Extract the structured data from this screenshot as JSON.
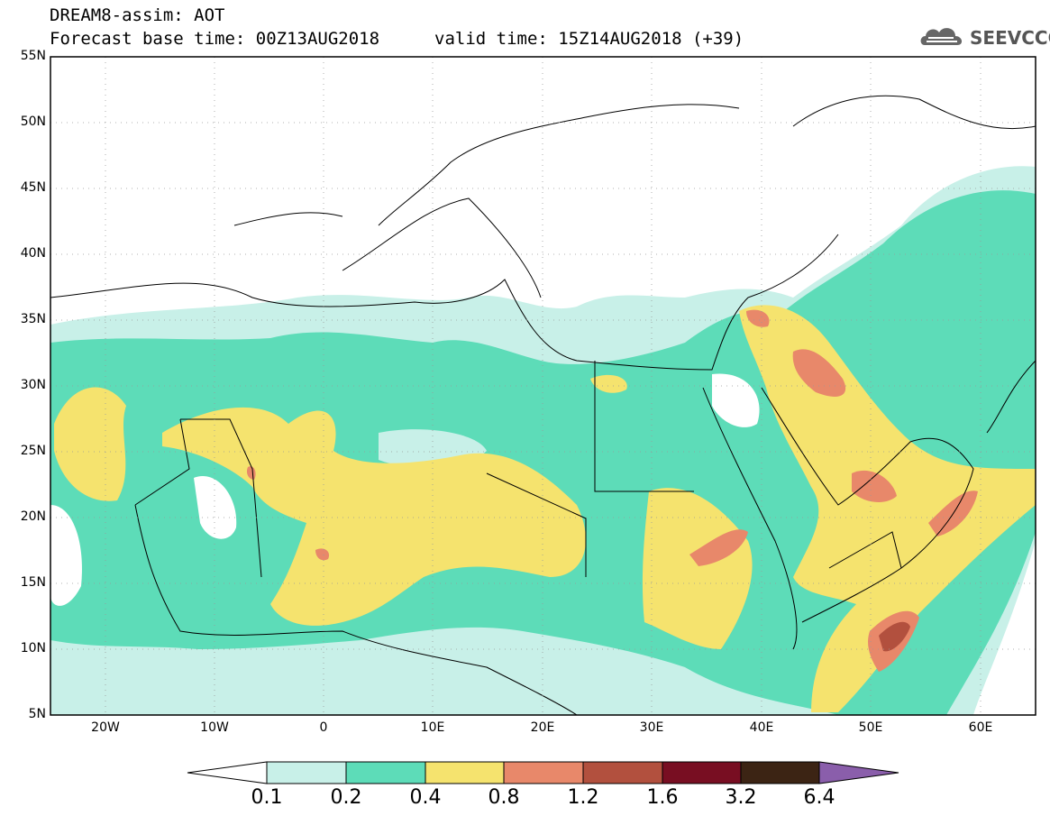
{
  "header": {
    "line1": "DREAM8-assim: AOT",
    "line2": "Forecast base time: 00Z13AUG2018",
    "valid": "valid time: 15Z14AUG2018 (+39)"
  },
  "logo": {
    "text": "SEEVCCC",
    "icon": "cloud-icon"
  },
  "axes": {
    "lat_labels": [
      "55N",
      "50N",
      "45N",
      "40N",
      "35N",
      "30N",
      "25N",
      "20N",
      "15N",
      "10N",
      "5N"
    ],
    "lon_labels": [
      "20W",
      "10W",
      "0",
      "10E",
      "20E",
      "30E",
      "40E",
      "50E",
      "60E"
    ]
  },
  "colorbar": {
    "labels": [
      "0.1",
      "0.2",
      "0.4",
      "0.8",
      "1.2",
      "1.6",
      "3.2",
      "6.4"
    ],
    "colors": [
      "#ffffff",
      "#c8f0e8",
      "#5ddcb8",
      "#f5e36e",
      "#e8886a",
      "#b2503e",
      "#780e22",
      "#3c2414",
      "#8a5eab"
    ]
  },
  "colors": {
    "c1": "#c8f0e8",
    "c2": "#5ddcb8",
    "c3": "#f5e36e",
    "c4": "#e8886a",
    "c5": "#b2503e"
  }
}
